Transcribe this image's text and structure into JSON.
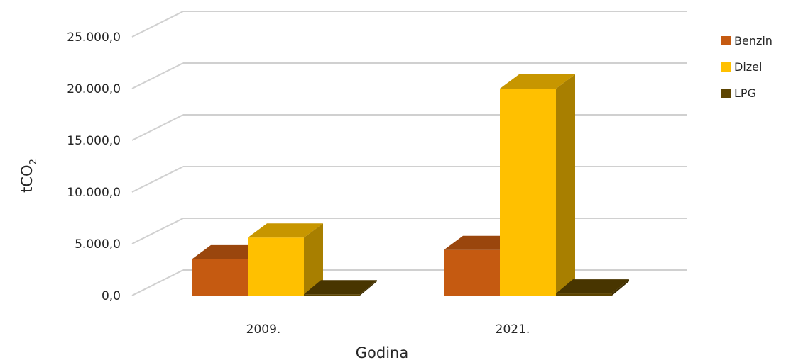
{
  "chart_data": {
    "type": "bar",
    "style": "3d-clustered-column",
    "categories": [
      "2009.",
      "2021."
    ],
    "series": [
      {
        "name": "Benzin",
        "values": [
          3500,
          4400
        ],
        "color": "#C55A11"
      },
      {
        "name": "Dizel",
        "values": [
          5600,
          20000
        ],
        "color": "#FFC000"
      },
      {
        "name": "LPG",
        "values": [
          120,
          200
        ],
        "color": "#5C4400"
      }
    ],
    "xlabel": "Godina",
    "ylabel": "tCO",
    "ylabel_subscript": "2",
    "ylim": [
      0,
      25000
    ],
    "yticks": [
      "0,0",
      "5.000,0",
      "10.000,0",
      "15.000,0",
      "20.000,0",
      "25.000,0"
    ],
    "grid": true,
    "legend_position": "right"
  }
}
